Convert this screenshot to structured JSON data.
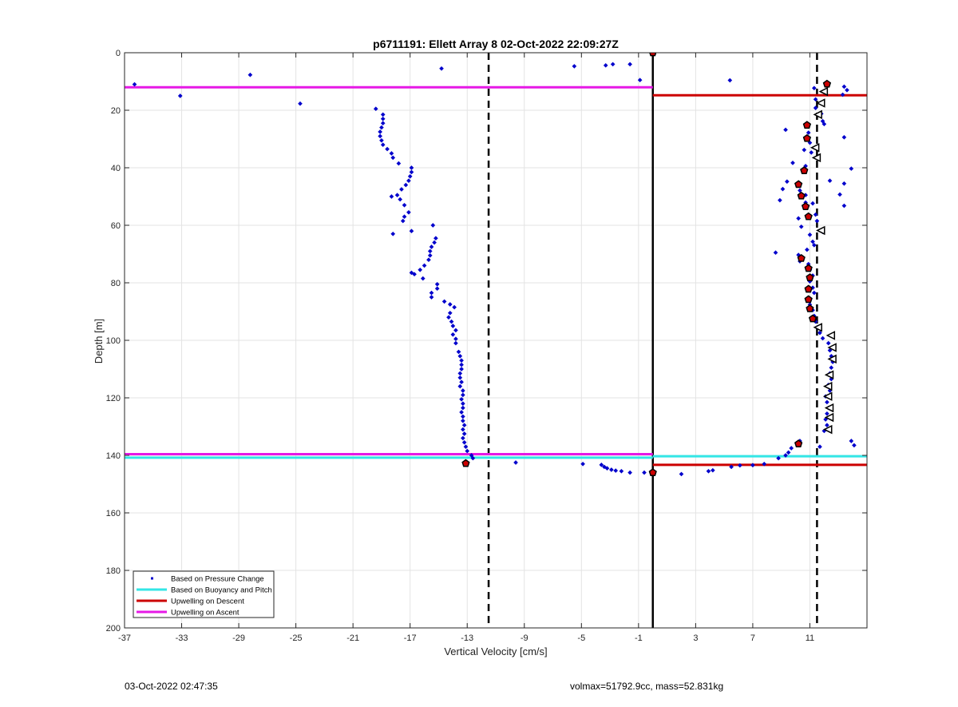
{
  "chart_data": {
    "type": "scatter",
    "title": "p6711191: Ellett Array 8 02-Oct-2022 22:09:27Z",
    "xlabel": "Vertical Velocity [cm/s]",
    "ylabel": "Depth [m]",
    "xlim": [
      -37,
      15
    ],
    "ylim": [
      0,
      200
    ],
    "y_reversed": true,
    "grid": true,
    "x_ticks": [
      -37,
      -33,
      -29,
      -25,
      -21,
      -17,
      -13,
      -9,
      -5,
      -1,
      3,
      7,
      11
    ],
    "y_ticks": [
      0,
      20,
      40,
      60,
      80,
      100,
      120,
      140,
      160,
      180,
      200
    ],
    "legend_position": "bottom-left",
    "legend": [
      {
        "label": "Based on Pressure Change",
        "color": "#0000cc",
        "style": "dot"
      },
      {
        "label": "Based on Buoyancy and Pitch",
        "color": "#33e6e6",
        "style": "line"
      },
      {
        "label": "Upwelling on Descent",
        "color": "#cc0000",
        "style": "line"
      },
      {
        "label": "Upwelling on Ascent",
        "color": "#e619e6",
        "style": "line"
      }
    ],
    "reference_lines": [
      {
        "x": -11.5,
        "style": "dashed",
        "color": "#000000"
      },
      {
        "x": 0,
        "style": "solid",
        "color": "#000000"
      },
      {
        "x": 11.5,
        "style": "dashed",
        "color": "#000000"
      }
    ],
    "series": [
      {
        "name": "Based on Pressure Change",
        "color": "#0000cc",
        "points": [
          [
            -36.3,
            11
          ],
          [
            -28.2,
            7.7
          ],
          [
            -33.1,
            15
          ],
          [
            -24.7,
            17.7
          ],
          [
            -14.8,
            5.5
          ],
          [
            -5.5,
            4.7
          ],
          [
            -3.3,
            4.4
          ],
          [
            -2.8,
            4
          ],
          [
            -1.6,
            4
          ],
          [
            -0.9,
            9.5
          ],
          [
            -19.4,
            19.5
          ],
          [
            -18.9,
            21.5
          ],
          [
            -18.9,
            23
          ],
          [
            -18.9,
            24.5
          ],
          [
            -19.0,
            26
          ],
          [
            -19.1,
            27.5
          ],
          [
            -19.1,
            29
          ],
          [
            -19.0,
            30.5
          ],
          [
            -18.9,
            32
          ],
          [
            -18.6,
            33.5
          ],
          [
            -18.3,
            35
          ],
          [
            -18.2,
            36.5
          ],
          [
            -17.8,
            38.5
          ],
          [
            -16.9,
            40
          ],
          [
            -16.9,
            41.5
          ],
          [
            -17.0,
            43
          ],
          [
            -17.1,
            44.5
          ],
          [
            -17.3,
            46
          ],
          [
            -17.6,
            47.5
          ],
          [
            -17.9,
            49.5
          ],
          [
            -18.3,
            50
          ],
          [
            -17.7,
            51
          ],
          [
            -17.4,
            53
          ],
          [
            -17.1,
            55.5
          ],
          [
            -17.4,
            57
          ],
          [
            -17.5,
            58.5
          ],
          [
            -18.2,
            63
          ],
          [
            -16.9,
            62
          ],
          [
            -15.4,
            60
          ],
          [
            -15.2,
            64.5
          ],
          [
            -15.3,
            66
          ],
          [
            -15.5,
            67.5
          ],
          [
            -15.6,
            69
          ],
          [
            -15.6,
            70.5
          ],
          [
            -15.7,
            72
          ],
          [
            -16.0,
            74
          ],
          [
            -16.3,
            75.5
          ],
          [
            -16.7,
            77
          ],
          [
            -16.9,
            76.5
          ],
          [
            -16.1,
            78.5
          ],
          [
            -15.1,
            80.5
          ],
          [
            -15.1,
            82
          ],
          [
            -15.5,
            83.5
          ],
          [
            -15.5,
            85
          ],
          [
            -14.6,
            86.5
          ],
          [
            -14.2,
            87.5
          ],
          [
            -13.9,
            88.5
          ],
          [
            -14.2,
            90.5
          ],
          [
            -14.3,
            92
          ],
          [
            -14.1,
            93.5
          ],
          [
            -14.0,
            95
          ],
          [
            -13.8,
            96.5
          ],
          [
            -14.0,
            98
          ],
          [
            -13.8,
            99.5
          ],
          [
            -13.8,
            101
          ],
          [
            -13.6,
            104
          ],
          [
            -13.5,
            105.5
          ],
          [
            -13.4,
            107
          ],
          [
            -13.4,
            108.5
          ],
          [
            -13.4,
            110
          ],
          [
            -13.5,
            111.5
          ],
          [
            -13.5,
            113
          ],
          [
            -13.4,
            114.5
          ],
          [
            -13.5,
            116
          ],
          [
            -13.3,
            117.5
          ],
          [
            -13.3,
            119
          ],
          [
            -13.4,
            120.5
          ],
          [
            -13.3,
            122
          ],
          [
            -13.3,
            123.5
          ],
          [
            -13.4,
            125
          ],
          [
            -13.3,
            126.5
          ],
          [
            -13.3,
            128
          ],
          [
            -13.2,
            129.5
          ],
          [
            -13.3,
            131
          ],
          [
            -13.2,
            132.5
          ],
          [
            -13.3,
            134
          ],
          [
            -13.2,
            135.5
          ],
          [
            -13.1,
            137
          ],
          [
            -13.0,
            138.5
          ],
          [
            -12.7,
            140
          ],
          [
            -12.6,
            141
          ],
          [
            -9.6,
            142.5
          ],
          [
            -4.9,
            143
          ],
          [
            -3.6,
            143.3
          ],
          [
            -3.4,
            144
          ],
          [
            -3.2,
            144.5
          ],
          [
            -2.9,
            145
          ],
          [
            -2.6,
            145.3
          ],
          [
            -2.2,
            145.5
          ],
          [
            -1.6,
            146
          ],
          [
            -0.6,
            146
          ],
          [
            2.0,
            146.5
          ],
          [
            3.9,
            145.5
          ],
          [
            4.2,
            145.2
          ],
          [
            5.5,
            144
          ],
          [
            6.1,
            143.5
          ],
          [
            7.0,
            143.4
          ],
          [
            7.8,
            143
          ],
          [
            8.8,
            141
          ],
          [
            9.3,
            140
          ],
          [
            9.5,
            139
          ],
          [
            9.7,
            137.5
          ],
          [
            10.1,
            136
          ],
          [
            10.3,
            135
          ],
          [
            11.7,
            137
          ],
          [
            13.9,
            135
          ],
          [
            14.1,
            136.5
          ],
          [
            5.4,
            9.6
          ],
          [
            13.4,
            11.8
          ],
          [
            13.6,
            13
          ],
          [
            13.3,
            14.6
          ],
          [
            11.3,
            12.3
          ],
          [
            11.4,
            16.2
          ],
          [
            11.4,
            19.2
          ],
          [
            11.8,
            21.2
          ],
          [
            11.9,
            23.8
          ],
          [
            12.0,
            24.8
          ],
          [
            9.3,
            26.8
          ],
          [
            10.9,
            27.8
          ],
          [
            11.0,
            31.3
          ],
          [
            13.4,
            29.4
          ],
          [
            10.6,
            33.8
          ],
          [
            11.1,
            34.7
          ],
          [
            9.8,
            38.3
          ],
          [
            10.7,
            39.4
          ],
          [
            13.9,
            40.3
          ],
          [
            12.4,
            44.5
          ],
          [
            9.4,
            44.8
          ],
          [
            13.4,
            45.5
          ],
          [
            9.1,
            47.4
          ],
          [
            10.3,
            47.9
          ],
          [
            10.7,
            49.5
          ],
          [
            13.1,
            49.3
          ],
          [
            8.9,
            51.3
          ],
          [
            10.7,
            52.1
          ],
          [
            11.2,
            52.4
          ],
          [
            13.4,
            53.2
          ],
          [
            11.4,
            56.3
          ],
          [
            10.2,
            57.6
          ],
          [
            11.5,
            58.5
          ],
          [
            10.4,
            60.5
          ],
          [
            11.9,
            62.3
          ],
          [
            11.0,
            63.3
          ],
          [
            11.2,
            65.7
          ],
          [
            11.3,
            66.9
          ],
          [
            10.8,
            68.5
          ],
          [
            8.6,
            69.5
          ],
          [
            10.2,
            70.3
          ],
          [
            10.3,
            72.5
          ],
          [
            10.9,
            73.5
          ],
          [
            11.0,
            75.5
          ],
          [
            11.2,
            77.5
          ],
          [
            11.0,
            79.5
          ],
          [
            11.2,
            81.7
          ],
          [
            11.3,
            83.5
          ],
          [
            11.0,
            85.5
          ],
          [
            11.0,
            87.6
          ],
          [
            11.2,
            89.5
          ],
          [
            11.3,
            91.5
          ],
          [
            11.4,
            93.5
          ],
          [
            11.5,
            95.5
          ],
          [
            11.7,
            97.4
          ],
          [
            11.9,
            99.3
          ],
          [
            12.3,
            101
          ],
          [
            12.4,
            103.5
          ],
          [
            12.5,
            105.5
          ],
          [
            12.6,
            107.5
          ],
          [
            12.5,
            109.5
          ],
          [
            12.4,
            111.5
          ],
          [
            12.5,
            113.5
          ],
          [
            12.3,
            115.5
          ],
          [
            12.4,
            117.5
          ],
          [
            12.1,
            119.5
          ],
          [
            12.2,
            121.5
          ],
          [
            12.3,
            123.5
          ],
          [
            12.2,
            125.5
          ],
          [
            12.1,
            127.5
          ],
          [
            12.2,
            129.5
          ],
          [
            12.0,
            131.5
          ]
        ]
      },
      {
        "name": "Based on Buoyancy and Pitch",
        "color": "#33e6e6",
        "segments": [
          {
            "x": [
              -37,
              0
            ],
            "y": 140.8
          },
          {
            "x": [
              0,
              15
            ],
            "y": 140.3
          }
        ]
      },
      {
        "name": "Upwelling on Descent",
        "color": "#cc0000",
        "segments": [
          {
            "x": [
              0,
              15
            ],
            "y": 14.8
          },
          {
            "x": [
              0,
              15
            ],
            "y": 143.3
          }
        ]
      },
      {
        "name": "Upwelling on Ascent",
        "color": "#e619e6",
        "segments": [
          {
            "x": [
              -37,
              0
            ],
            "y": 12.0
          },
          {
            "x": [
              -37,
              0
            ],
            "y": 139.6
          }
        ]
      },
      {
        "name": "descent markers",
        "color": "#cc0000",
        "points": [
          [
            12.2,
            10.9
          ],
          [
            10.6,
            41.0
          ],
          [
            10.2,
            45.8
          ],
          [
            10.4,
            49.8
          ],
          [
            10.7,
            53.5
          ],
          [
            10.9,
            57.0
          ],
          [
            10.8,
            25.2
          ],
          [
            10.8,
            29.8
          ],
          [
            10.4,
            71.5
          ],
          [
            10.9,
            75.0
          ],
          [
            11.0,
            78.2
          ],
          [
            10.9,
            82.2
          ],
          [
            10.9,
            85.8
          ],
          [
            11.0,
            89.0
          ],
          [
            11.2,
            92.5
          ],
          [
            10.2,
            136.0
          ],
          [
            -13.1,
            142.8
          ],
          [
            0,
            146.0
          ],
          [
            0,
            0
          ]
        ]
      },
      {
        "name": "ascent markers",
        "color": "#ffffff",
        "points": [
          [
            12.0,
            13.5
          ],
          [
            11.8,
            17.5
          ],
          [
            11.6,
            21.5
          ],
          [
            11.4,
            33.0
          ],
          [
            11.5,
            36.5
          ],
          [
            11.8,
            61.8
          ],
          [
            11.6,
            95.5
          ],
          [
            12.5,
            98.3
          ],
          [
            12.6,
            102.5
          ],
          [
            12.6,
            106.5
          ],
          [
            12.4,
            112.0
          ],
          [
            12.3,
            116.0
          ],
          [
            12.3,
            119.5
          ],
          [
            12.4,
            123.5
          ],
          [
            12.4,
            126.8
          ],
          [
            12.3,
            131.0
          ]
        ]
      }
    ]
  },
  "footer": {
    "timestamp": "03-Oct-2022 02:47:35",
    "summary": "volmax=51792.9cc, mass=52.831kg"
  }
}
